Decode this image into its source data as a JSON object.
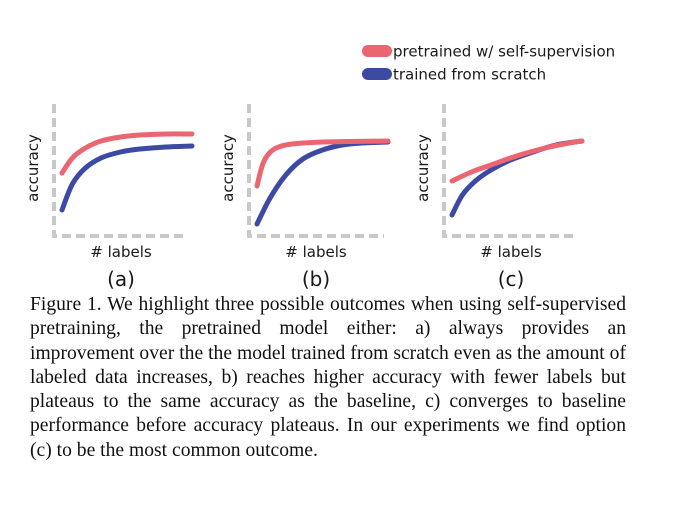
{
  "legend": {
    "pretrained": "pretrained w/ self-supervision",
    "scratch": "trained from scratch"
  },
  "colors": {
    "pretrained": "#ea6670",
    "scratch": "#3d4aa3",
    "axis": "#c8c8c8"
  },
  "chart_data": [
    {
      "type": "line",
      "panel_label": "(a)",
      "xlabel": "# labels",
      "ylabel": "accuracy",
      "series": [
        {
          "name": "pretrained w/ self-supervision",
          "x": [
            0,
            0.08,
            0.18,
            0.3,
            0.45,
            0.6,
            0.8,
            1.0
          ],
          "y": [
            0.55,
            0.7,
            0.8,
            0.87,
            0.91,
            0.93,
            0.94,
            0.94
          ]
        },
        {
          "name": "trained from scratch",
          "x": [
            0,
            0.08,
            0.18,
            0.3,
            0.45,
            0.6,
            0.8,
            1.0
          ],
          "y": [
            0.18,
            0.44,
            0.6,
            0.7,
            0.76,
            0.79,
            0.81,
            0.82
          ]
        }
      ]
    },
    {
      "type": "line",
      "panel_label": "(b)",
      "xlabel": "# labels",
      "ylabel": "accuracy",
      "series": [
        {
          "name": "pretrained w/ self-supervision",
          "x": [
            0,
            0.05,
            0.12,
            0.22,
            0.35,
            0.5,
            0.7,
            1.0
          ],
          "y": [
            0.42,
            0.66,
            0.78,
            0.83,
            0.85,
            0.86,
            0.865,
            0.87
          ]
        },
        {
          "name": "trained from scratch",
          "x": [
            0,
            0.1,
            0.22,
            0.35,
            0.5,
            0.65,
            0.8,
            1.0
          ],
          "y": [
            0.04,
            0.3,
            0.53,
            0.69,
            0.78,
            0.83,
            0.85,
            0.86
          ]
        }
      ]
    },
    {
      "type": "line",
      "panel_label": "(c)",
      "xlabel": "# labels",
      "ylabel": "accuracy",
      "series": [
        {
          "name": "pretrained w/ self-supervision",
          "x": [
            0,
            0.15,
            0.3,
            0.45,
            0.6,
            0.75,
            0.9,
            1.0
          ],
          "y": [
            0.47,
            0.56,
            0.63,
            0.7,
            0.76,
            0.81,
            0.85,
            0.87
          ]
        },
        {
          "name": "trained from scratch",
          "x": [
            0,
            0.08,
            0.18,
            0.3,
            0.45,
            0.6,
            0.8,
            1.0
          ],
          "y": [
            0.13,
            0.33,
            0.47,
            0.58,
            0.68,
            0.75,
            0.83,
            0.87
          ]
        }
      ]
    }
  ],
  "caption": "Figure 1. We highlight three possible outcomes when using self-supervised pretraining, the pretrained model either: a) always provides an improvement over the the model trained from scratch even as the amount of labeled data increases, b) reaches higher accuracy with fewer labels but plateaus to the same accuracy as the baseline, c) converges to baseline performance before accuracy plateaus. In our experiments we find option (c) to be the most common outcome."
}
